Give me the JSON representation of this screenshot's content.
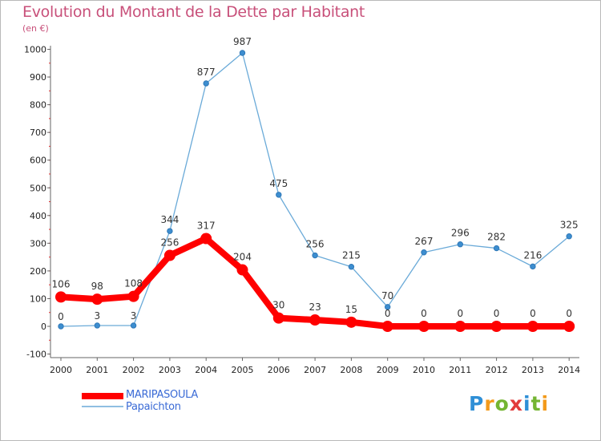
{
  "title": "Evolution du Montant de la Dette par Habitant",
  "subtitle": "(en €)",
  "logo": {
    "text": "Proxiti",
    "letter_colors": [
      "#2f8fd6",
      "#f39a1b",
      "#74b532",
      "#e23b3b",
      "#2f8fd6",
      "#74b532",
      "#f39a1b"
    ]
  },
  "chart_data": {
    "type": "line",
    "x": [
      "2000",
      "2001",
      "2002",
      "2003",
      "2004",
      "2005",
      "2006",
      "2007",
      "2008",
      "2009",
      "2010",
      "2011",
      "2012",
      "2013",
      "2014"
    ],
    "ylim": [
      -100,
      1000
    ],
    "yticks": [
      -100,
      0,
      100,
      200,
      300,
      400,
      500,
      600,
      700,
      800,
      900,
      1000
    ],
    "grid": false,
    "legend_position": "bottom-left",
    "series": [
      {
        "name": "MARIPASOULA",
        "color": "#ff0000",
        "values": [
          106,
          98,
          108,
          256,
          317,
          204,
          30,
          23,
          15,
          0,
          0,
          0,
          0,
          0,
          0
        ]
      },
      {
        "name": "Papaichton",
        "color": "#6aaad8",
        "values": [
          0,
          3,
          3,
          344,
          877,
          987,
          475,
          256,
          215,
          70,
          267,
          296,
          282,
          216,
          325
        ]
      }
    ]
  }
}
